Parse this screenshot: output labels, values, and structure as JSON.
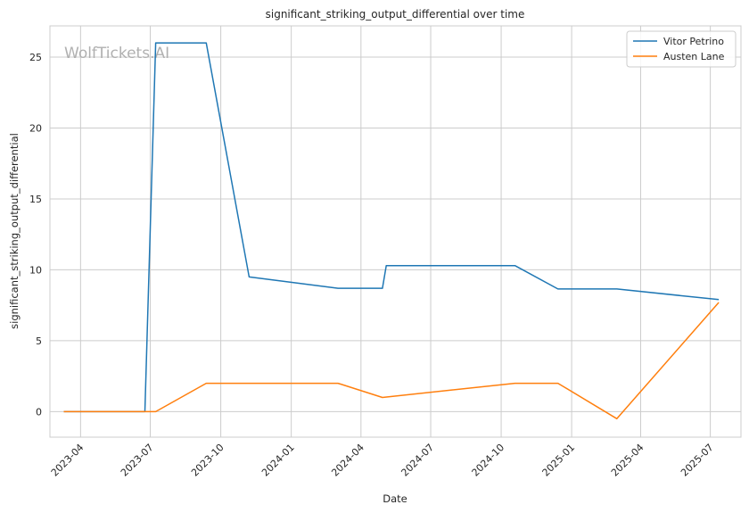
{
  "chart_data": {
    "type": "line",
    "title": "significant_striking_output_differential over time",
    "xlabel": "Date",
    "ylabel": "significant_striking_output_differential",
    "watermark": "WolfTickets.AI",
    "x_ticks": [
      "2023-04",
      "2023-07",
      "2023-10",
      "2024-01",
      "2024-04",
      "2024-07",
      "2024-10",
      "2025-01",
      "2025-04",
      "2025-07"
    ],
    "y_ticks": [
      "0",
      "5",
      "10",
      "15",
      "20",
      "25"
    ],
    "ylim": [
      -1.8,
      27.2
    ],
    "xlim": [
      "2023-02-20",
      "2025-08-10"
    ],
    "grid": true,
    "legend_position": "top-right",
    "series": [
      {
        "name": "Vitor Petrino",
        "color": "#1f77b4",
        "points": [
          [
            "2023-03-10",
            0
          ],
          [
            "2023-06-24",
            0
          ],
          [
            "2023-07-08",
            26
          ],
          [
            "2023-09-12",
            26
          ],
          [
            "2023-11-07",
            9.5
          ],
          [
            "2024-03-02",
            8.7
          ],
          [
            "2024-04-29",
            8.7
          ],
          [
            "2024-05-04",
            10.3
          ],
          [
            "2024-10-19",
            10.3
          ],
          [
            "2024-12-14",
            8.65
          ],
          [
            "2025-03-01",
            8.65
          ],
          [
            "2025-07-12",
            7.9
          ]
        ]
      },
      {
        "name": "Austen Lane",
        "color": "#ff7f0e",
        "points": [
          [
            "2023-03-10",
            0
          ],
          [
            "2023-07-08",
            0
          ],
          [
            "2023-09-12",
            2
          ],
          [
            "2024-03-02",
            2
          ],
          [
            "2024-04-29",
            1
          ],
          [
            "2024-10-19",
            2
          ],
          [
            "2024-12-14",
            2
          ],
          [
            "2025-03-01",
            -0.5
          ],
          [
            "2025-07-12",
            7.7
          ]
        ]
      }
    ]
  }
}
